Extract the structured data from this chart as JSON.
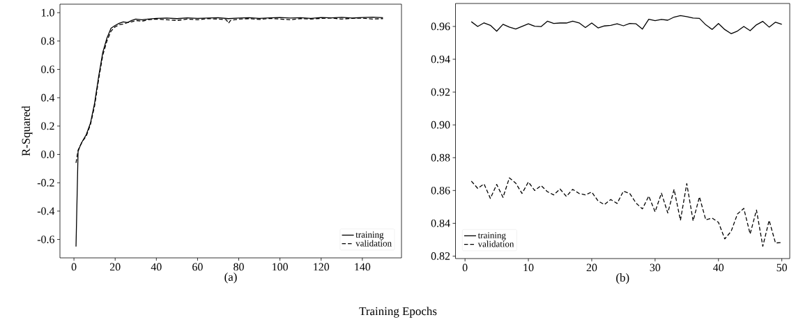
{
  "chart_data": [
    {
      "type": "line",
      "xlabel": "(a)",
      "ylabel": "R-Squared",
      "annotations": [
        "Training Epochs"
      ],
      "legend": "bottom right",
      "xlim": [
        -6.8,
        159
      ],
      "ylim": [
        -0.73,
        1.06
      ],
      "xticks": [
        0,
        20,
        40,
        60,
        80,
        100,
        120,
        140
      ],
      "yticks": [
        {
          "value": -0.6,
          "label": "-0.6"
        },
        {
          "value": -0.4,
          "label": "-0.4"
        },
        {
          "value": -0.2,
          "label": "-0.2"
        },
        {
          "value": 0,
          "label": "0.0"
        },
        0.2,
        0.4,
        0.6,
        0.8,
        {
          "value": 1,
          "label": "1.0"
        }
      ],
      "series": [
        {
          "name": "training",
          "color": "#000000",
          "line_style": "solid",
          "x": [
            1,
            2,
            3,
            4,
            6,
            8,
            10,
            12,
            14,
            16,
            18,
            20,
            22,
            24,
            26,
            28,
            30,
            33,
            36,
            40,
            45,
            50,
            55,
            60,
            65,
            70,
            75,
            80,
            85,
            90,
            95,
            100,
            105,
            110,
            115,
            120,
            125,
            130,
            135,
            140,
            145,
            150
          ],
          "values": [
            -0.65,
            0.02,
            0.06,
            0.09,
            0.14,
            0.22,
            0.36,
            0.55,
            0.72,
            0.82,
            0.89,
            0.91,
            0.925,
            0.935,
            0.93,
            0.945,
            0.955,
            0.95,
            0.955,
            0.96,
            0.962,
            0.958,
            0.963,
            0.96,
            0.962,
            0.965,
            0.958,
            0.962,
            0.965,
            0.96,
            0.963,
            0.966,
            0.962,
            0.965,
            0.96,
            0.966,
            0.963,
            0.967,
            0.962,
            0.966,
            0.968,
            0.965
          ]
        },
        {
          "name": "validation",
          "color": "#000000",
          "line_style": "dashed",
          "x": [
            1,
            2,
            3,
            4,
            6,
            8,
            10,
            12,
            14,
            16,
            18,
            20,
            22,
            24,
            26,
            28,
            30,
            33,
            36,
            40,
            45,
            50,
            55,
            60,
            65,
            70,
            74,
            75,
            76,
            80,
            85,
            90,
            95,
            100,
            105,
            110,
            115,
            120,
            125,
            130,
            135,
            140,
            145,
            150
          ],
          "values": [
            -0.06,
            0.03,
            0.06,
            0.09,
            0.13,
            0.21,
            0.34,
            0.53,
            0.7,
            0.8,
            0.87,
            0.9,
            0.915,
            0.92,
            0.93,
            0.935,
            0.945,
            0.94,
            0.95,
            0.955,
            0.95,
            0.945,
            0.955,
            0.95,
            0.958,
            0.955,
            0.95,
            0.925,
            0.945,
            0.955,
            0.958,
            0.952,
            0.96,
            0.955,
            0.95,
            0.958,
            0.955,
            0.96,
            0.962,
            0.955,
            0.96,
            0.962,
            0.955,
            0.958
          ]
        }
      ]
    },
    {
      "type": "line",
      "xlabel": "(b)",
      "legend": "bottom left",
      "xlim": [
        -1.5,
        51.25
      ],
      "ylim": [
        0.8185,
        0.974
      ],
      "xticks": [
        0,
        10,
        20,
        30,
        40,
        50
      ],
      "yticks": [
        0.82,
        0.84,
        0.86,
        0.88,
        {
          "value": 0.9,
          "label": "0.90"
        },
        0.92,
        0.94,
        0.96
      ],
      "series": [
        {
          "name": "training",
          "color": "#000000",
          "line_style": "solid",
          "x": [
            1,
            2,
            3,
            4,
            5,
            6,
            7,
            8,
            9,
            10,
            11,
            12,
            13,
            14,
            15,
            16,
            17,
            18,
            19,
            20,
            21,
            22,
            23,
            24,
            25,
            26,
            27,
            28,
            29,
            30,
            31,
            32,
            33,
            34,
            35,
            36,
            37,
            38,
            39,
            40,
            41,
            42,
            43,
            44,
            45,
            46,
            47,
            48,
            49,
            50
          ],
          "values": [
            0.9629,
            0.96,
            0.9622,
            0.9607,
            0.9571,
            0.9613,
            0.9596,
            0.9584,
            0.96,
            0.9616,
            0.9601,
            0.9599,
            0.9632,
            0.9618,
            0.9621,
            0.9621,
            0.9632,
            0.9622,
            0.9593,
            0.9621,
            0.9591,
            0.9603,
            0.9607,
            0.9616,
            0.9604,
            0.9618,
            0.9616,
            0.9584,
            0.9644,
            0.9635,
            0.9643,
            0.9638,
            0.9657,
            0.9666,
            0.966,
            0.9651,
            0.9649,
            0.961,
            0.9582,
            0.9618,
            0.9581,
            0.9556,
            0.9572,
            0.96,
            0.9574,
            0.961,
            0.9631,
            0.9596,
            0.9626,
            0.9613
          ]
        },
        {
          "name": "validation",
          "color": "#000000",
          "line_style": "dashed",
          "x": [
            1,
            2,
            3,
            4,
            5,
            6,
            7,
            8,
            9,
            10,
            11,
            12,
            13,
            14,
            15,
            16,
            17,
            18,
            19,
            20,
            21,
            22,
            23,
            24,
            25,
            26,
            27,
            28,
            29,
            30,
            31,
            32,
            33,
            34,
            35,
            36,
            37,
            38,
            39,
            40,
            41,
            42,
            43,
            44,
            45,
            46,
            47,
            48,
            49,
            50
          ],
          "values": [
            0.8657,
            0.8613,
            0.864,
            0.8552,
            0.8637,
            0.8558,
            0.8677,
            0.8645,
            0.8582,
            0.8652,
            0.86,
            0.863,
            0.8593,
            0.8573,
            0.8609,
            0.8564,
            0.8607,
            0.8582,
            0.8573,
            0.8591,
            0.8536,
            0.8514,
            0.8545,
            0.8521,
            0.8596,
            0.8582,
            0.8523,
            0.8488,
            0.8566,
            0.847,
            0.8584,
            0.8463,
            0.8607,
            0.8418,
            0.8642,
            0.8415,
            0.8561,
            0.8421,
            0.8432,
            0.8406,
            0.8305,
            0.8351,
            0.8457,
            0.8491,
            0.8335,
            0.8481,
            0.826,
            0.8418,
            0.828,
            0.8283
          ]
        }
      ]
    }
  ]
}
